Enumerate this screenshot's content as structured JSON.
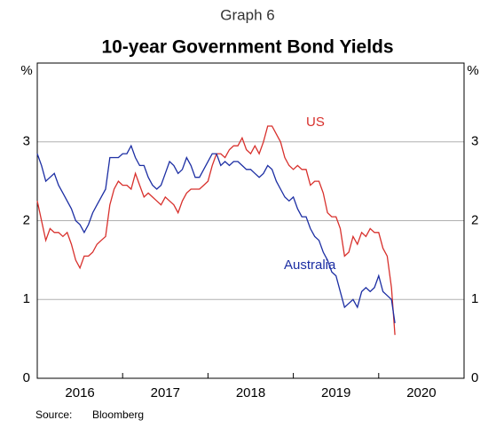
{
  "chart_data": {
    "type": "line",
    "supertitle": "Graph 6",
    "title": "10-year Government Bond Yields",
    "y_unit": "%",
    "source_label": "Source:",
    "source": "Bloomberg",
    "xlim": [
      2016.0,
      2021.0
    ],
    "xticks": [
      {
        "value": 2016.5,
        "label": "2016"
      },
      {
        "value": 2017.5,
        "label": "2017"
      },
      {
        "value": 2018.5,
        "label": "2018"
      },
      {
        "value": 2019.5,
        "label": "2019"
      },
      {
        "value": 2020.5,
        "label": "2020"
      }
    ],
    "ylim": [
      0,
      4
    ],
    "yticks": [
      0,
      1,
      2,
      3
    ],
    "grid": true,
    "x": [
      2016.0,
      2016.05,
      2016.1,
      2016.15,
      2016.2,
      2016.25,
      2016.3,
      2016.35,
      2016.4,
      2016.45,
      2016.5,
      2016.55,
      2016.6,
      2016.65,
      2016.7,
      2016.75,
      2016.8,
      2016.85,
      2016.9,
      2016.95,
      2017.0,
      2017.05,
      2017.1,
      2017.15,
      2017.2,
      2017.25,
      2017.3,
      2017.35,
      2017.4,
      2017.45,
      2017.5,
      2017.55,
      2017.6,
      2017.65,
      2017.7,
      2017.75,
      2017.8,
      2017.85,
      2017.9,
      2017.95,
      2018.0,
      2018.05,
      2018.1,
      2018.15,
      2018.2,
      2018.25,
      2018.3,
      2018.35,
      2018.4,
      2018.45,
      2018.5,
      2018.55,
      2018.6,
      2018.65,
      2018.7,
      2018.75,
      2018.8,
      2018.85,
      2018.9,
      2018.95,
      2019.0,
      2019.05,
      2019.1,
      2019.15,
      2019.2,
      2019.25,
      2019.3,
      2019.35,
      2019.4,
      2019.45,
      2019.5,
      2019.55,
      2019.6,
      2019.65,
      2019.7,
      2019.75,
      2019.8,
      2019.85,
      2019.9,
      2019.95,
      2020.0,
      2020.05,
      2020.1,
      2020.15,
      2020.19
    ],
    "series": [
      {
        "name": "US",
        "color": "#d8302c",
        "values": [
          2.25,
          2.0,
          1.75,
          1.9,
          1.85,
          1.85,
          1.8,
          1.85,
          1.7,
          1.5,
          1.4,
          1.55,
          1.55,
          1.6,
          1.7,
          1.75,
          1.8,
          2.2,
          2.4,
          2.5,
          2.45,
          2.45,
          2.4,
          2.6,
          2.45,
          2.3,
          2.35,
          2.3,
          2.25,
          2.2,
          2.3,
          2.25,
          2.2,
          2.1,
          2.25,
          2.35,
          2.4,
          2.4,
          2.4,
          2.45,
          2.5,
          2.7,
          2.85,
          2.85,
          2.8,
          2.9,
          2.95,
          2.95,
          3.05,
          2.9,
          2.85,
          2.95,
          2.85,
          3.0,
          3.2,
          3.2,
          3.1,
          3.0,
          2.8,
          2.7,
          2.65,
          2.7,
          2.65,
          2.65,
          2.45,
          2.5,
          2.5,
          2.35,
          2.1,
          2.05,
          2.05,
          1.9,
          1.55,
          1.6,
          1.8,
          1.7,
          1.85,
          1.8,
          1.9,
          1.85,
          1.85,
          1.65,
          1.55,
          1.15,
          0.55
        ]
      },
      {
        "name": "Australia",
        "color": "#1c2ea3",
        "values": [
          2.85,
          2.7,
          2.5,
          2.55,
          2.6,
          2.45,
          2.35,
          2.25,
          2.15,
          2.0,
          1.95,
          1.85,
          1.95,
          2.1,
          2.2,
          2.3,
          2.4,
          2.8,
          2.8,
          2.8,
          2.85,
          2.85,
          2.95,
          2.8,
          2.7,
          2.7,
          2.55,
          2.45,
          2.4,
          2.45,
          2.6,
          2.75,
          2.7,
          2.6,
          2.65,
          2.8,
          2.7,
          2.55,
          2.55,
          2.65,
          2.75,
          2.85,
          2.85,
          2.7,
          2.75,
          2.7,
          2.75,
          2.75,
          2.7,
          2.65,
          2.65,
          2.6,
          2.55,
          2.6,
          2.7,
          2.65,
          2.5,
          2.4,
          2.3,
          2.25,
          2.3,
          2.15,
          2.05,
          2.05,
          1.9,
          1.8,
          1.75,
          1.6,
          1.5,
          1.35,
          1.3,
          1.1,
          0.9,
          0.95,
          1.0,
          0.9,
          1.1,
          1.15,
          1.1,
          1.15,
          1.3,
          1.1,
          1.05,
          1.0,
          0.7
        ]
      }
    ]
  }
}
